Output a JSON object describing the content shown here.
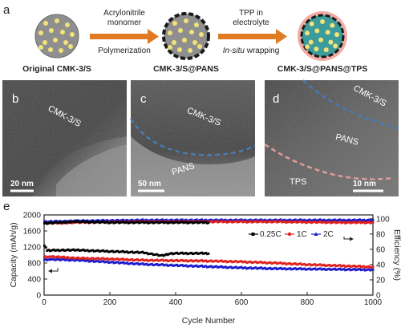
{
  "panel_labels": {
    "a": "a",
    "b": "b",
    "c": "c",
    "d": "d",
    "e": "e"
  },
  "schematic": {
    "stage1_caption": "Original CMK-3/S",
    "stage2_caption": "CMK-3/S@PANS",
    "stage3_caption": "CMK-3/S@PANS@TPS",
    "arrow1_top_line1": "Acrylonitrile",
    "arrow1_top_line2": "monomer",
    "arrow1_bottom": "Polymerization",
    "arrow2_top_line1": "TPP in",
    "arrow2_top_line2": "electrolyte",
    "arrow2_bottom_italic": "In-situ",
    "arrow2_bottom_rest": " wrapping",
    "colors": {
      "sphere": "#9a9a9a",
      "dot": "#f2e27a",
      "arrow": "#e07b22",
      "pans_shell": "#1a1a1a",
      "tps_shell": "#f0a8a0",
      "dot_blue": "#3f8fb0"
    }
  },
  "tem": {
    "b": {
      "label": "CMK-3/S",
      "scale": "20 nm"
    },
    "c": {
      "label1": "CMK-3/S",
      "label2": "PANS",
      "scale": "50 nm"
    },
    "d": {
      "label1": "CMK-3/S",
      "label2": "PANS",
      "label3": "TPS",
      "scale": "10 nm"
    }
  },
  "chart_data": {
    "type": "scatter",
    "xlabel": "Cycle Number",
    "ylabel": "Capacity (mAh/g)",
    "y2label": "Efficiency (%)",
    "xlim": [
      0,
      1000
    ],
    "ylim": [
      0,
      2000
    ],
    "y2lim": [
      0,
      105
    ],
    "xticks": [
      "0",
      "200",
      "400",
      "600",
      "800",
      "1000"
    ],
    "yticks": [
      "0",
      "400",
      "800",
      "1200",
      "1600",
      "2000"
    ],
    "y2ticks": [
      "0",
      "20",
      "40",
      "60",
      "80",
      "100"
    ],
    "legend_position": "top-right",
    "series": [
      {
        "name": "0.25C",
        "color": "#000000",
        "capacity": {
          "x": [
            1,
            10,
            50,
            100,
            200,
            300,
            360,
            380,
            400,
            500
          ],
          "y": [
            1230,
            1110,
            1120,
            1120,
            1090,
            1060,
            980,
            1030,
            1040,
            1040
          ]
        },
        "efficiency": {
          "x": [
            1,
            50,
            100,
            200,
            300,
            400,
            500
          ],
          "y": [
            94,
            95,
            96,
            95,
            95,
            95,
            95
          ]
        }
      },
      {
        "name": "1C",
        "color": "#e0201b",
        "capacity": {
          "x": [
            1,
            20,
            60,
            100,
            200,
            300,
            400,
            500,
            600,
            700,
            800,
            900,
            1000
          ],
          "y": [
            950,
            960,
            940,
            920,
            900,
            870,
            860,
            850,
            830,
            800,
            760,
            730,
            700
          ]
        },
        "efficiency": {
          "x": [
            1,
            100,
            300,
            500,
            700,
            900,
            1000
          ],
          "y": [
            94,
            95,
            96,
            96,
            96,
            95,
            95
          ]
        }
      },
      {
        "name": "2C",
        "color": "#1a1acc",
        "capacity": {
          "x": [
            1,
            20,
            60,
            100,
            200,
            300,
            400,
            500,
            600,
            700,
            800,
            900,
            1000
          ],
          "y": [
            880,
            890,
            880,
            870,
            820,
            770,
            740,
            710,
            680,
            660,
            650,
            640,
            630
          ]
        },
        "efficiency": {
          "x": [
            1,
            100,
            300,
            500,
            700,
            900,
            1000
          ],
          "y": [
            96,
            97,
            98,
            98,
            98,
            98,
            98
          ]
        }
      }
    ]
  }
}
